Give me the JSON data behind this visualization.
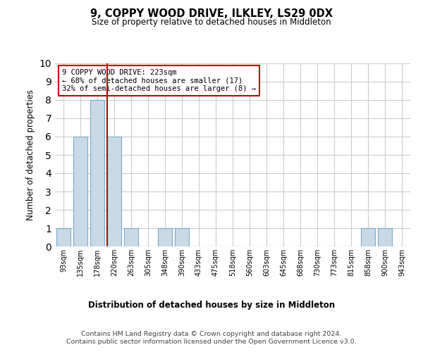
{
  "title": "9, COPPY WOOD DRIVE, ILKLEY, LS29 0DX",
  "subtitle": "Size of property relative to detached houses in Middleton",
  "xlabel": "Distribution of detached houses by size in Middleton",
  "ylabel": "Number of detached properties",
  "categories": [
    "93sqm",
    "135sqm",
    "178sqm",
    "220sqm",
    "263sqm",
    "305sqm",
    "348sqm",
    "390sqm",
    "433sqm",
    "475sqm",
    "518sqm",
    "560sqm",
    "603sqm",
    "645sqm",
    "688sqm",
    "730sqm",
    "773sqm",
    "815sqm",
    "858sqm",
    "900sqm",
    "943sqm"
  ],
  "values": [
    1,
    6,
    8,
    6,
    1,
    0,
    1,
    1,
    0,
    0,
    0,
    0,
    0,
    0,
    0,
    0,
    0,
    0,
    1,
    1,
    0
  ],
  "bar_color": "#c8d9e8",
  "bar_edge_color": "#7aaac8",
  "subject_line_color": "#c00000",
  "annotation_text": "9 COPPY WOOD DRIVE: 223sqm\n← 68% of detached houses are smaller (17)\n32% of semi-detached houses are larger (8) →",
  "annotation_box_color": "#c00000",
  "ylim": [
    0,
    10
  ],
  "yticks": [
    0,
    1,
    2,
    3,
    4,
    5,
    6,
    7,
    8,
    9,
    10
  ],
  "grid_color": "#cccccc",
  "background_color": "#ffffff",
  "footer_line1": "Contains HM Land Registry data © Crown copyright and database right 2024.",
  "footer_line2": "Contains public sector information licensed under the Open Government Licence v3.0."
}
